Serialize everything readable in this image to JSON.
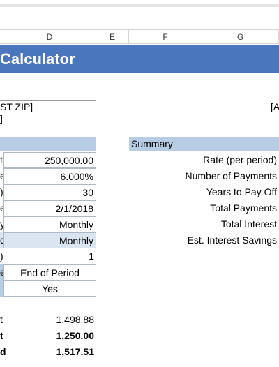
{
  "column_headers": [
    "D",
    "E",
    "F",
    "G"
  ],
  "title": "Calculator",
  "info": {
    "zip": "ST ZIP]",
    "line2": "]",
    "right": "[A"
  },
  "inputs": [
    {
      "label": "t",
      "value": "250,000.00"
    },
    {
      "label": "e",
      "value": "6.000%"
    },
    {
      "label": ")",
      "value": "30"
    },
    {
      "label": "e",
      "value": "2/1/2018"
    },
    {
      "label": "y",
      "value": "Monthly"
    },
    {
      "label": "d",
      "value": "Monthly"
    },
    {
      "label": ")",
      "value": "1"
    },
    {
      "label": "e",
      "value": "End of Period"
    },
    {
      "value": "Yes"
    }
  ],
  "summary": {
    "header": "Summary",
    "items": [
      "Rate (per period)",
      "Number of Payments",
      "Years to Pay Off",
      "Total Payments",
      "Total Interest",
      "Est. Interest Savings"
    ]
  },
  "results": [
    {
      "label": "t",
      "value": "1,498.88"
    },
    {
      "label": "t",
      "value": "1,250.00"
    },
    {
      "label": "d",
      "value": "1,517.51"
    }
  ]
}
